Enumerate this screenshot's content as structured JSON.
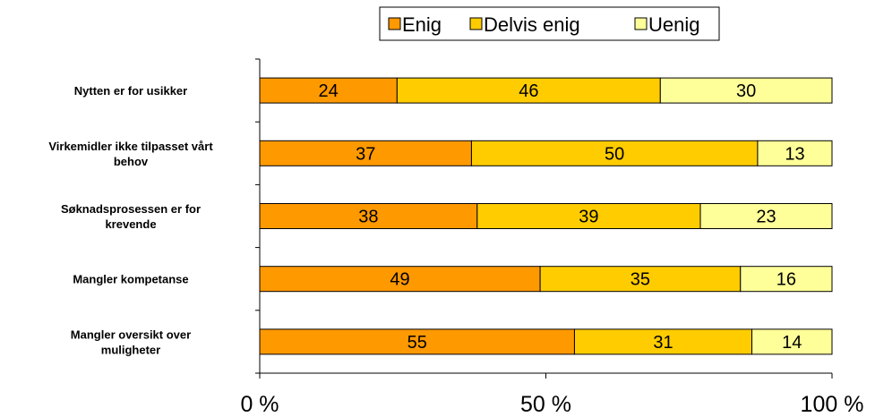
{
  "chart_data": {
    "type": "bar",
    "orientation": "horizontal",
    "stacked": "percent",
    "categories": [
      [
        "Nytten er for usikker"
      ],
      [
        "Virkemidler ikke tilpasset vårt",
        "behov"
      ],
      [
        "Søknadsprosessen er for",
        "krevende"
      ],
      [
        "Mangler kompetanse"
      ],
      [
        "Mangler oversikt over",
        "muligheter"
      ]
    ],
    "series": [
      {
        "name": "Enig",
        "color": "#ff9900",
        "values": [
          24,
          37,
          38,
          49,
          55
        ]
      },
      {
        "name": "Delvis enig",
        "color": "#ffcc00",
        "values": [
          46,
          50,
          39,
          35,
          31
        ]
      },
      {
        "name": "Uenig",
        "color": "#ffff99",
        "values": [
          30,
          13,
          23,
          16,
          14
        ]
      }
    ],
    "xlim": [
      0,
      100
    ],
    "xticks": [
      "0 %",
      "50 %",
      "100 %"
    ],
    "legend_position": "top",
    "grid": false
  }
}
